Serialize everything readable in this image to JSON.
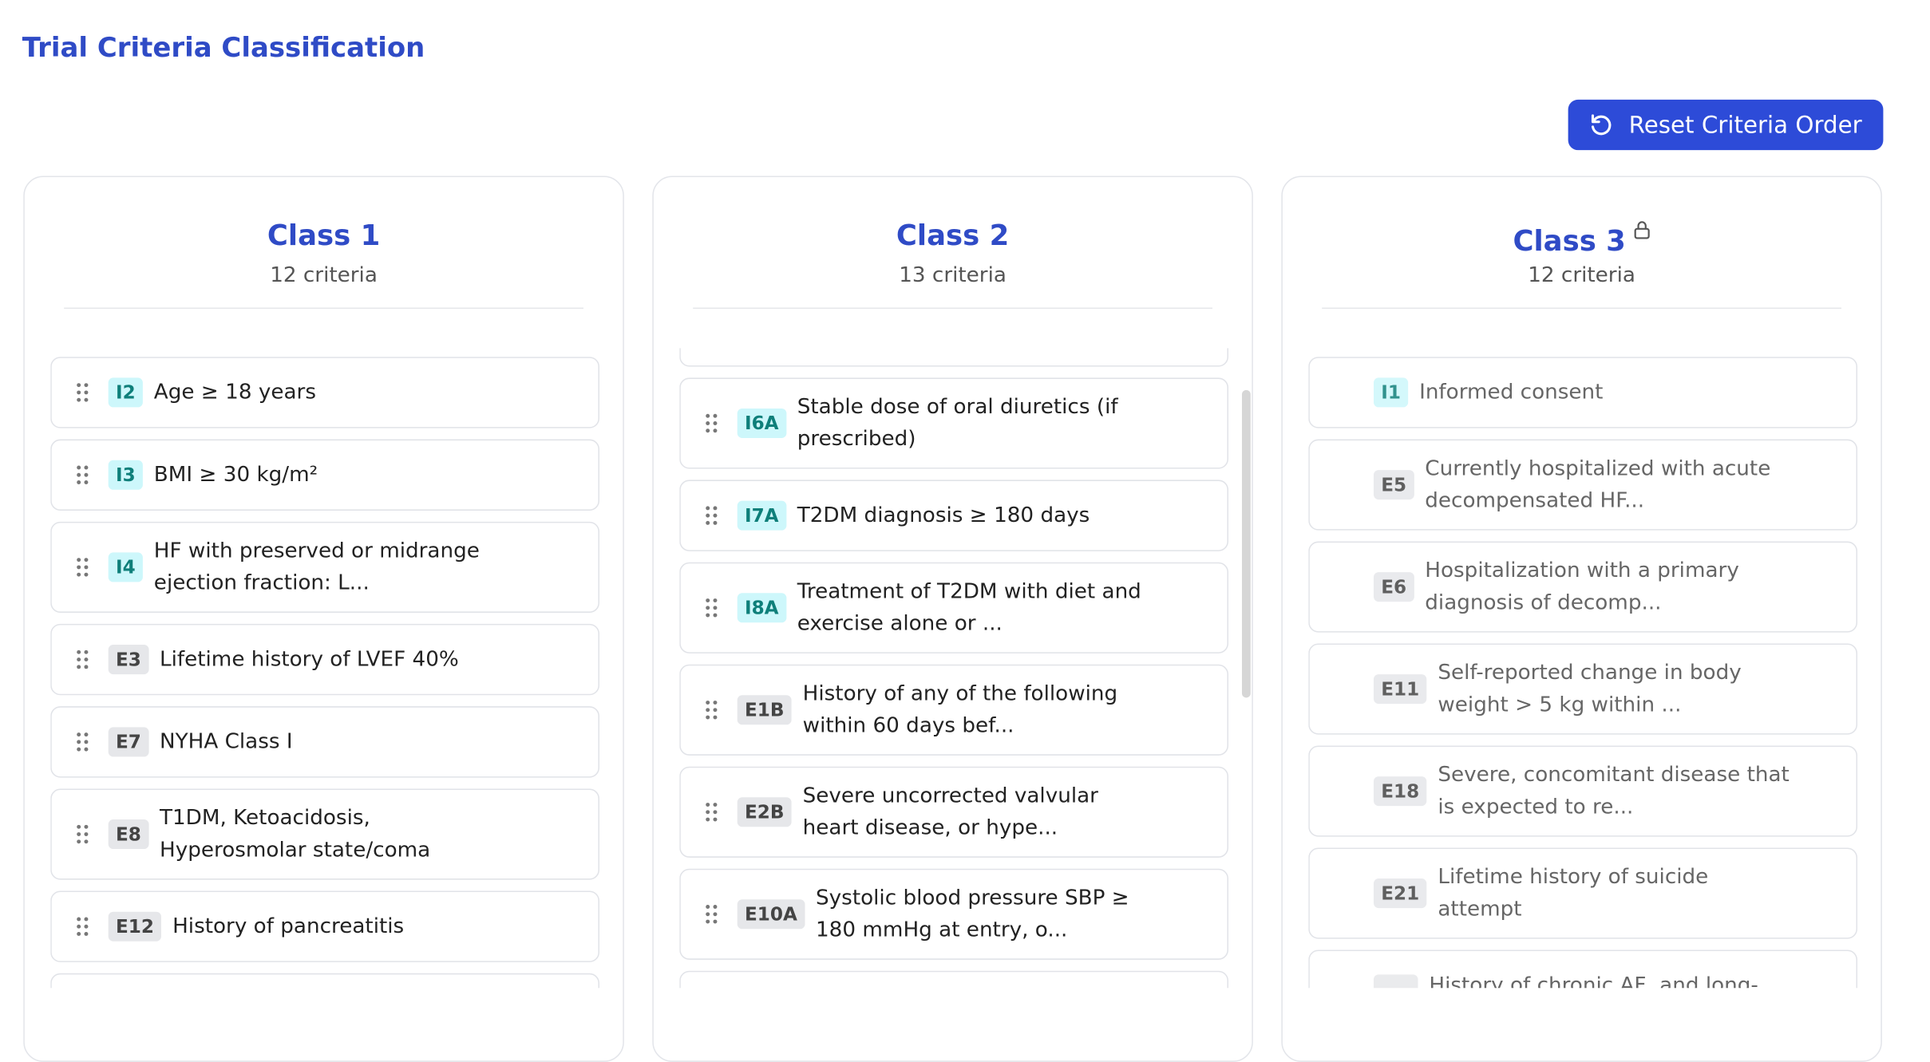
{
  "header": {
    "title": "Trial Criteria Classification",
    "reset_button": "Reset Criteria Order"
  },
  "columns": [
    {
      "title": "Class 1",
      "count": "12 criteria",
      "locked": false,
      "criteria": [
        {
          "code": "I2",
          "text": "Age ≥ 18 years"
        },
        {
          "code": "I3",
          "text": "BMI ≥ 30 kg/m²"
        },
        {
          "code": "I4",
          "text": "HF with preserved or midrange ejection fraction: L..."
        },
        {
          "code": "E3",
          "text": "Lifetime history of LVEF 40%"
        },
        {
          "code": "E7",
          "text": "NYHA Class I"
        },
        {
          "code": "E8",
          "text": "T1DM, Ketoacidosis, Hyperosmolar state/coma"
        },
        {
          "code": "E12",
          "text": "History of pancreatitis"
        }
      ]
    },
    {
      "title": "Class 2",
      "count": "13 criteria",
      "locked": false,
      "criteria": [
        {
          "code": "I6A",
          "text": "Stable dose of oral diuretics (if prescribed)"
        },
        {
          "code": "I7A",
          "text": "T2DM diagnosis ≥ 180 days"
        },
        {
          "code": "I8A",
          "text": "Treatment of T2DM with diet and exercise alone or ..."
        },
        {
          "code": "E1B",
          "text": "History of any of the following within 60 days bef..."
        },
        {
          "code": "E2B",
          "text": "Severe uncorrected valvular heart disease, or hype..."
        },
        {
          "code": "E10A",
          "text": "Systolic blood pressure SBP ≥ 180 mmHg at entry, o..."
        }
      ]
    },
    {
      "title": "Class 3",
      "count": "12 criteria",
      "locked": true,
      "criteria": [
        {
          "code": "I1",
          "text": "Informed consent"
        },
        {
          "code": "E5",
          "text": "Currently hospitalized with acute decompensated HF..."
        },
        {
          "code": "E6",
          "text": "Hospitalization with a primary diagnosis of decomp..."
        },
        {
          "code": "E11",
          "text": "Self-reported change in body weight > 5 kg within ..."
        },
        {
          "code": "E18",
          "text": "Severe, concomitant disease that is expected to re..."
        },
        {
          "code": "E21",
          "text": "Lifetime history of suicide attempt"
        },
        {
          "code": null,
          "text": "History of chronic AF, and long-"
        }
      ]
    }
  ]
}
